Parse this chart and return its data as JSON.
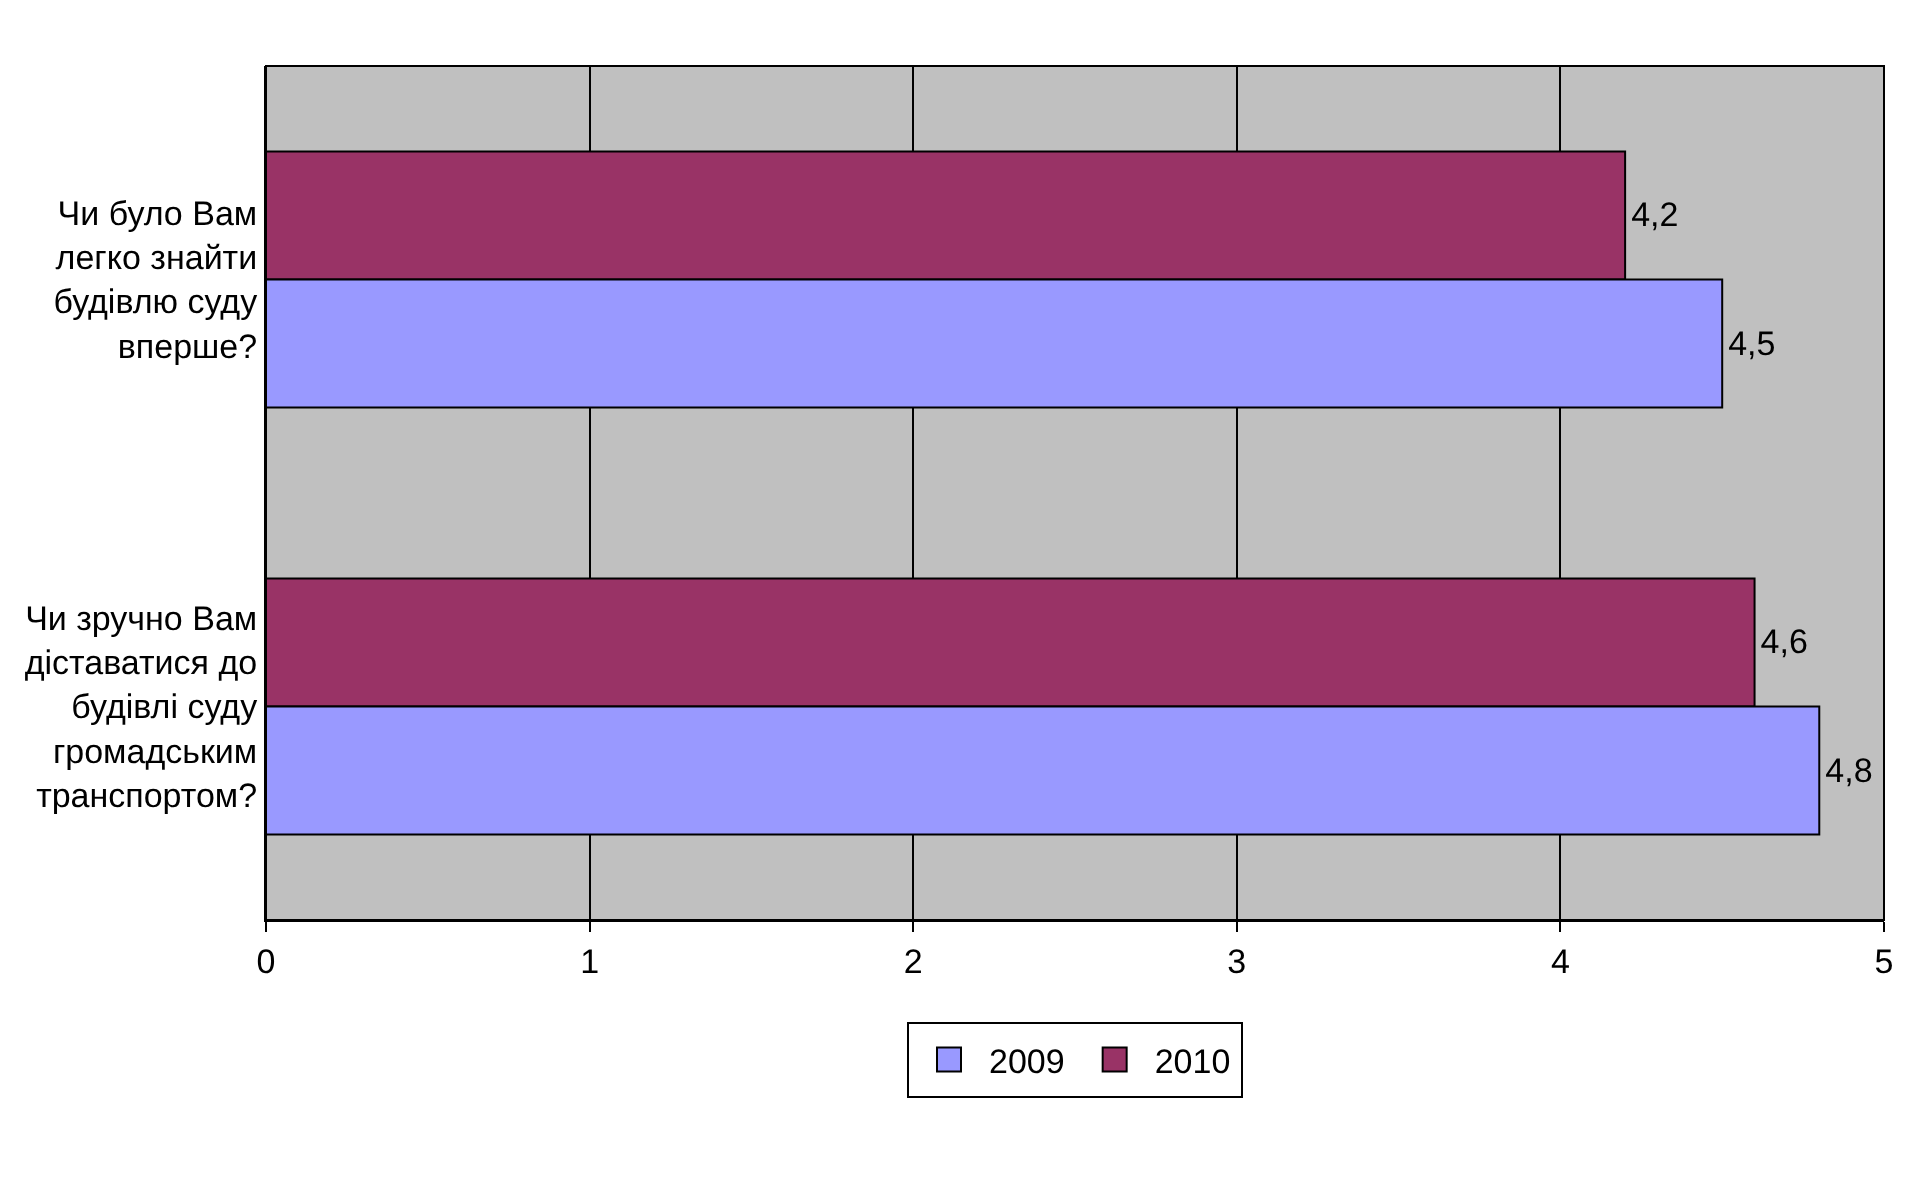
{
  "chart_data": {
    "type": "bar",
    "orientation": "horizontal",
    "categories": [
      "Чи було Вам легко знайти будівлю суду вперше?",
      "Чи зручно Вам діставатися до будівлі суду громадським транспортом?"
    ],
    "series": [
      {
        "name": "2009",
        "color": "#9999ff",
        "values": [
          4.5,
          4.8
        ],
        "value_labels": [
          "4,5",
          "4,8"
        ]
      },
      {
        "name": "2010",
        "color": "#993366",
        "values": [
          4.2,
          4.6
        ],
        "value_labels": [
          "4,2",
          "4,6"
        ]
      }
    ],
    "xlim": [
      0,
      5
    ],
    "xticks": [
      0,
      1,
      2,
      3,
      4,
      5
    ],
    "grid": "x",
    "legend": "bottom"
  }
}
